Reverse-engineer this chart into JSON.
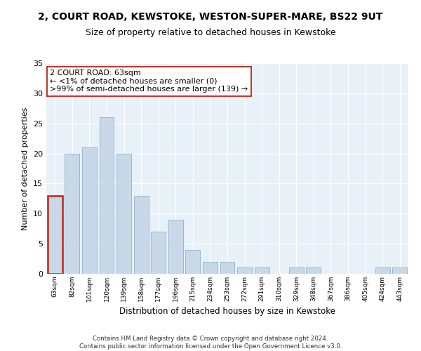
{
  "title1": "2, COURT ROAD, KEWSTOKE, WESTON-SUPER-MARE, BS22 9UT",
  "title2": "Size of property relative to detached houses in Kewstoke",
  "xlabel": "Distribution of detached houses by size in Kewstoke",
  "ylabel": "Number of detached properties",
  "categories": [
    "63sqm",
    "82sqm",
    "101sqm",
    "120sqm",
    "139sqm",
    "158sqm",
    "177sqm",
    "196sqm",
    "215sqm",
    "234sqm",
    "253sqm",
    "272sqm",
    "291sqm",
    "310sqm",
    "329sqm",
    "348sqm",
    "367sqm",
    "386sqm",
    "405sqm",
    "424sqm",
    "443sqm"
  ],
  "values": [
    13,
    20,
    21,
    26,
    20,
    13,
    7,
    9,
    4,
    2,
    2,
    1,
    1,
    0,
    1,
    1,
    0,
    0,
    0,
    1,
    1
  ],
  "bar_color": "#c8d8e8",
  "bar_edge_color": "#7aaac8",
  "highlight_index": 0,
  "highlight_edge_color": "#c0392b",
  "annotation_text": "2 COURT ROAD: 63sqm\n← <1% of detached houses are smaller (0)\n>99% of semi-detached houses are larger (139) →",
  "annotation_box_color": "#ffffff",
  "annotation_edge_color": "#c0392b",
  "ylim": [
    0,
    35
  ],
  "yticks": [
    0,
    5,
    10,
    15,
    20,
    25,
    30,
    35
  ],
  "background_color": "#e8f0f8",
  "footer_text": "Contains HM Land Registry data © Crown copyright and database right 2024.\nContains public sector information licensed under the Open Government Licence v3.0.",
  "title1_fontsize": 10,
  "title2_fontsize": 9,
  "xlabel_fontsize": 8.5,
  "ylabel_fontsize": 8
}
